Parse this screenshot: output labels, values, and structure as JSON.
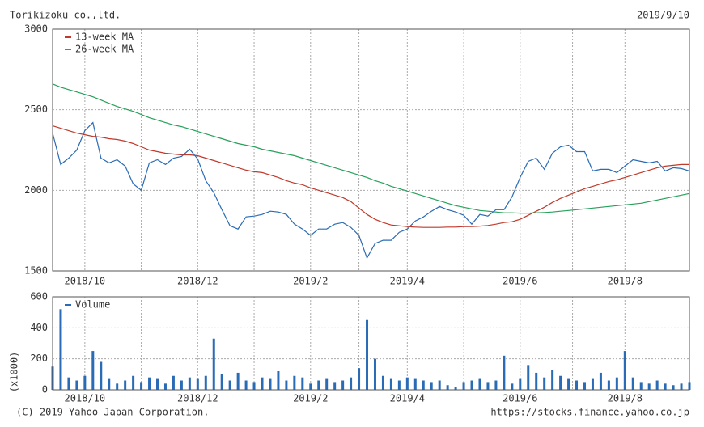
{
  "chart_data": [
    {
      "type": "line",
      "title": "Torikizoku co.,ltd.",
      "subtitle": "2019/9/10",
      "categories": [
        null,
        null,
        null,
        null,
        "2018/10",
        null,
        null,
        null,
        null,
        null,
        null,
        null,
        null,
        null,
        null,
        null,
        null,
        null,
        "2018/12",
        null,
        null,
        null,
        null,
        null,
        null,
        null,
        null,
        null,
        null,
        null,
        null,
        null,
        "2019/2",
        null,
        null,
        null,
        null,
        null,
        null,
        null,
        null,
        null,
        null,
        null,
        "2019/4",
        null,
        null,
        null,
        null,
        null,
        null,
        null,
        null,
        null,
        null,
        null,
        null,
        null,
        "2019/6",
        null,
        null,
        null,
        null,
        null,
        null,
        null,
        null,
        null,
        null,
        null,
        null,
        "2019/8",
        null,
        null,
        null,
        null,
        null,
        null,
        null,
        null
      ],
      "series": [
        {
          "name": "13-week MA",
          "color": "#c0392b",
          "values": [
            2400,
            2385,
            2370,
            2355,
            2345,
            2335,
            2330,
            2320,
            2315,
            2305,
            2290,
            2270,
            2250,
            2240,
            2230,
            2225,
            2220,
            2220,
            2215,
            2200,
            2185,
            2170,
            2155,
            2140,
            2125,
            2115,
            2110,
            2095,
            2080,
            2060,
            2045,
            2035,
            2015,
            2000,
            1985,
            1970,
            1955,
            1930,
            1890,
            1850,
            1820,
            1800,
            1785,
            1780,
            1775,
            1772,
            1770,
            1770,
            1770,
            1772,
            1772,
            1775,
            1775,
            1778,
            1782,
            1790,
            1800,
            1805,
            1820,
            1845,
            1870,
            1895,
            1925,
            1950,
            1970,
            1990,
            2010,
            2025,
            2040,
            2055,
            2065,
            2080,
            2095,
            2110,
            2125,
            2140,
            2150,
            2155,
            2160,
            2160
          ]
        },
        {
          "name": "26-week MA",
          "color": "#27a05a",
          "values": [
            2660,
            2640,
            2625,
            2610,
            2595,
            2580,
            2560,
            2540,
            2520,
            2505,
            2490,
            2470,
            2450,
            2435,
            2420,
            2405,
            2395,
            2380,
            2365,
            2350,
            2335,
            2320,
            2305,
            2290,
            2280,
            2270,
            2255,
            2245,
            2235,
            2225,
            2215,
            2200,
            2185,
            2170,
            2155,
            2140,
            2125,
            2110,
            2095,
            2080,
            2060,
            2045,
            2025,
            2010,
            1995,
            1980,
            1965,
            1950,
            1935,
            1920,
            1905,
            1895,
            1885,
            1875,
            1870,
            1865,
            1860,
            1860,
            1858,
            1858,
            1860,
            1862,
            1865,
            1870,
            1875,
            1880,
            1885,
            1890,
            1895,
            1900,
            1905,
            1910,
            1915,
            1920,
            1930,
            1940,
            1950,
            1960,
            1970,
            1980
          ]
        },
        {
          "color": "#2a6bb5",
          "values": [
            2355,
            2160,
            2200,
            2250,
            2370,
            2420,
            2200,
            2170,
            2190,
            2150,
            2040,
            2000,
            2170,
            2190,
            2160,
            2200,
            2210,
            2255,
            2195,
            2060,
            1985,
            1880,
            1780,
            1760,
            1835,
            1840,
            1850,
            1870,
            1865,
            1850,
            1790,
            1760,
            1720,
            1760,
            1760,
            1790,
            1800,
            1770,
            1720,
            1580,
            1670,
            1690,
            1690,
            1740,
            1760,
            1810,
            1835,
            1870,
            1900,
            1880,
            1865,
            1845,
            1790,
            1850,
            1840,
            1880,
            1880,
            1960,
            2080,
            2180,
            2200,
            2130,
            2230,
            2270,
            2280,
            2240,
            2240,
            2120,
            2130,
            2130,
            2110,
            2150,
            2190,
            2180,
            2170,
            2180,
            2120,
            2140,
            2135,
            2120
          ]
        }
      ],
      "ylim": [
        1500,
        3000
      ],
      "yticks": [
        1500,
        2000,
        2500,
        3000
      ],
      "grid": true
    },
    {
      "type": "bar",
      "y_label": "(x1000)",
      "categories": [
        null,
        null,
        null,
        null,
        "2018/10",
        null,
        null,
        null,
        null,
        null,
        null,
        null,
        null,
        null,
        null,
        null,
        null,
        null,
        "2018/12",
        null,
        null,
        null,
        null,
        null,
        null,
        null,
        null,
        null,
        null,
        null,
        null,
        null,
        "2019/2",
        null,
        null,
        null,
        null,
        null,
        null,
        null,
        null,
        null,
        null,
        null,
        "2019/4",
        null,
        null,
        null,
        null,
        null,
        null,
        null,
        null,
        null,
        null,
        null,
        null,
        null,
        "2019/6",
        null,
        null,
        null,
        null,
        null,
        null,
        null,
        null,
        null,
        null,
        null,
        null,
        "2019/8",
        null,
        null,
        null,
        null,
        null,
        null,
        null,
        null
      ],
      "series": [
        {
          "name": "Volume",
          "color": "#2a6bb5",
          "values": [
            150,
            520,
            80,
            60,
            90,
            250,
            180,
            70,
            40,
            60,
            90,
            50,
            80,
            70,
            40,
            90,
            60,
            80,
            70,
            90,
            330,
            100,
            60,
            110,
            60,
            50,
            80,
            70,
            120,
            60,
            90,
            80,
            40,
            60,
            70,
            50,
            60,
            80,
            140,
            450,
            200,
            90,
            70,
            60,
            80,
            70,
            60,
            50,
            60,
            30,
            20,
            50,
            60,
            70,
            50,
            60,
            220,
            40,
            70,
            160,
            110,
            80,
            130,
            90,
            70,
            60,
            50,
            70,
            110,
            60,
            80,
            250,
            80,
            50,
            40,
            60,
            40,
            30,
            40,
            50
          ]
        }
      ],
      "ylim": [
        0,
        600
      ],
      "yticks": [
        0,
        200,
        400,
        600
      ],
      "grid": true
    }
  ],
  "footer": {
    "copyright": "(C) 2019 Yahoo Japan Corporation.",
    "url": "https://stocks.finance.yahoo.co.jp"
  }
}
